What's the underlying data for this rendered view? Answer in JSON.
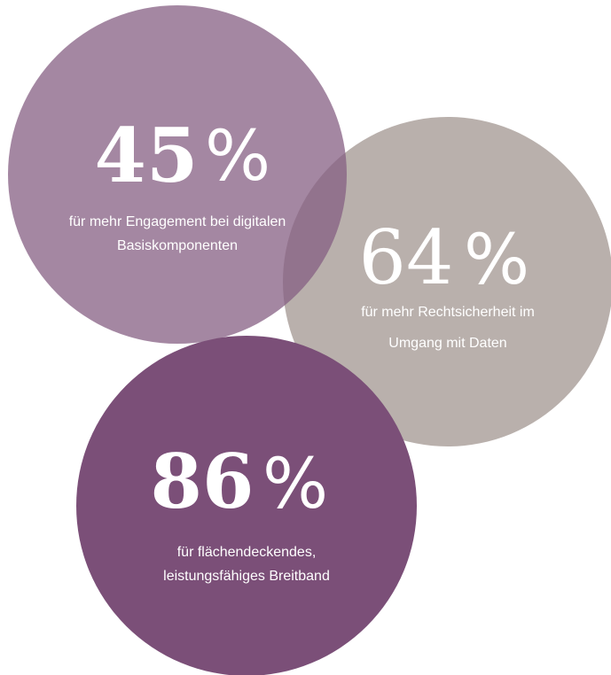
{
  "items": [
    {
      "value": 45,
      "unit": "%",
      "lines": [
        "für mehr Engagement bei digitalen",
        "Basiskomponenten"
      ]
    },
    {
      "value": 64,
      "unit": "%",
      "lines": [
        "für mehr Rechtsicherheit im",
        "Umgang mit Daten"
      ]
    },
    {
      "value": 86,
      "unit": "%",
      "lines": [
        "für flächendeckendes,",
        "leistungsfähiges Breitband"
      ]
    }
  ]
}
